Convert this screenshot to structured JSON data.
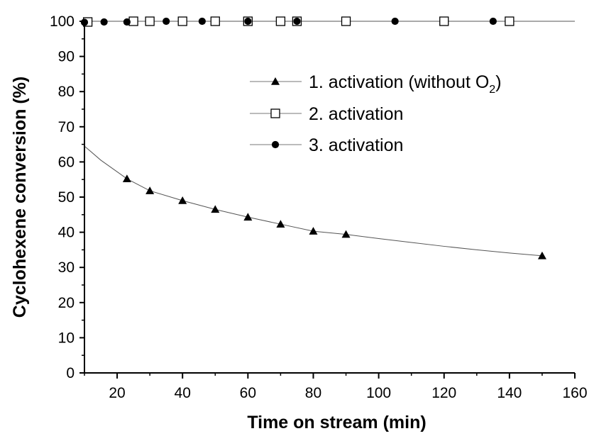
{
  "chart_data": {
    "type": "scatter",
    "xlabel": "Time on stream (min)",
    "ylabel": "Cyclohexene conversion (%)",
    "xlim": [
      10,
      160
    ],
    "ylim": [
      0,
      100
    ],
    "x_ticks": [
      20,
      40,
      60,
      80,
      100,
      120,
      140,
      160
    ],
    "y_ticks": [
      0,
      10,
      20,
      30,
      40,
      50,
      60,
      70,
      80,
      90,
      100
    ],
    "grid": false,
    "legend_position": "upper-right",
    "series": [
      {
        "name": "1. activation (without O",
        "name_subscript": "2",
        "name_suffix": ")",
        "marker": "filled-triangle",
        "x": [
          23,
          30,
          40,
          50,
          60,
          70,
          80,
          90,
          150
        ],
        "y": [
          55.2,
          51.8,
          49.0,
          46.5,
          44.3,
          42.3,
          40.3,
          39.4,
          33.3
        ],
        "fit_curve": {
          "x": [
            10,
            15,
            20,
            23,
            30,
            40,
            50,
            60,
            70,
            80,
            90,
            100,
            110,
            120,
            130,
            140,
            150
          ],
          "y": [
            64.5,
            60.5,
            57.2,
            55.2,
            51.8,
            49.0,
            46.5,
            44.3,
            42.3,
            40.3,
            39.4,
            38.2,
            37.1,
            36.0,
            35.0,
            34.1,
            33.3
          ]
        }
      },
      {
        "name": "2. activation",
        "marker": "open-square",
        "x": [
          11,
          25,
          30,
          40,
          50,
          60,
          70,
          75,
          90,
          120,
          140
        ],
        "y": [
          99.8,
          100,
          100,
          100,
          100,
          100,
          100,
          100,
          100,
          100,
          100
        ],
        "line_y": 100
      },
      {
        "name": "3. activation",
        "marker": "filled-circle",
        "x": [
          10,
          16,
          23,
          35,
          46,
          60,
          75,
          105,
          135
        ],
        "y": [
          99.7,
          99.8,
          99.8,
          100,
          100,
          100,
          100,
          100,
          100
        ]
      }
    ]
  }
}
